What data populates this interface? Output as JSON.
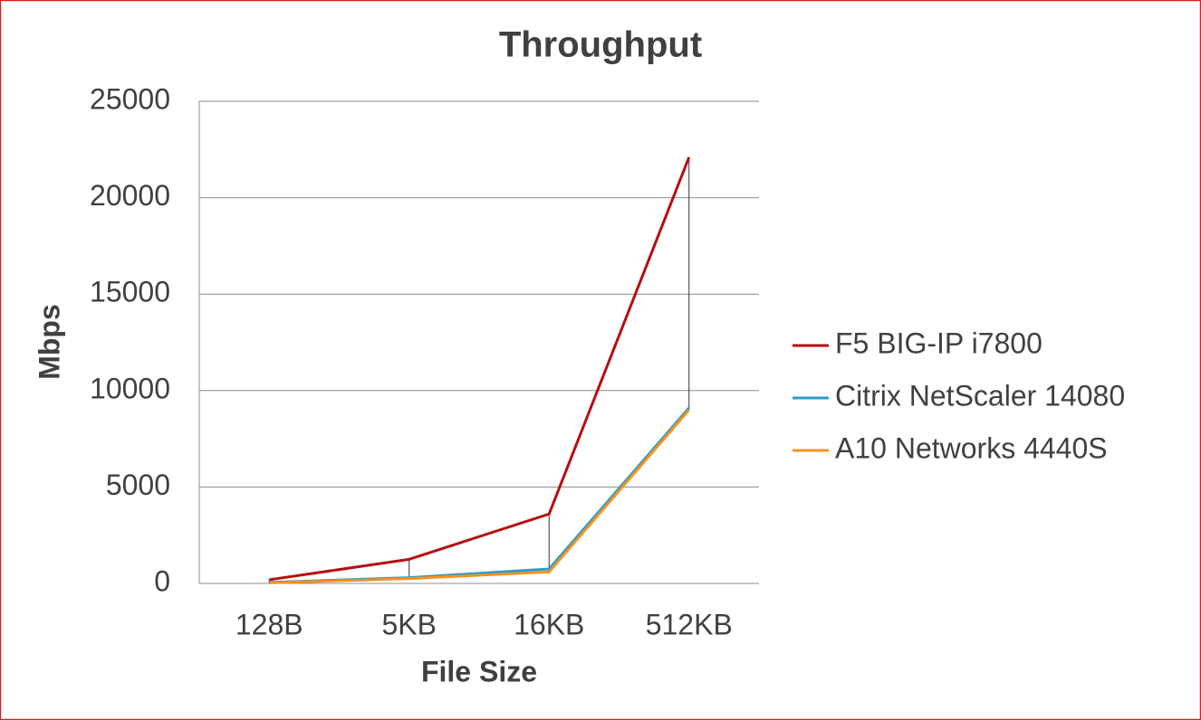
{
  "chart_data": {
    "type": "line",
    "title": "Throughput",
    "x_label": "File Size",
    "y_label": "Mbps",
    "categories": [
      "128B",
      "5KB",
      "16KB",
      "512KB"
    ],
    "series": [
      {
        "name": "F5 BIG-IP i7800",
        "color": "#b50f0f",
        "values": [
          190,
          1250,
          3600,
          22100
        ]
      },
      {
        "name": "Citrix NetScaler 14080",
        "color": "#2a9ccc",
        "values": [
          50,
          300,
          750,
          9100
        ]
      },
      {
        "name": "A10 Networks 4440S",
        "color": "#f5921e",
        "values": [
          30,
          250,
          600,
          9000
        ]
      }
    ],
    "ylim": [
      0,
      25000
    ],
    "yticks": [
      0,
      5000,
      10000,
      15000,
      20000,
      25000
    ],
    "grid": true,
    "legend": "right"
  }
}
